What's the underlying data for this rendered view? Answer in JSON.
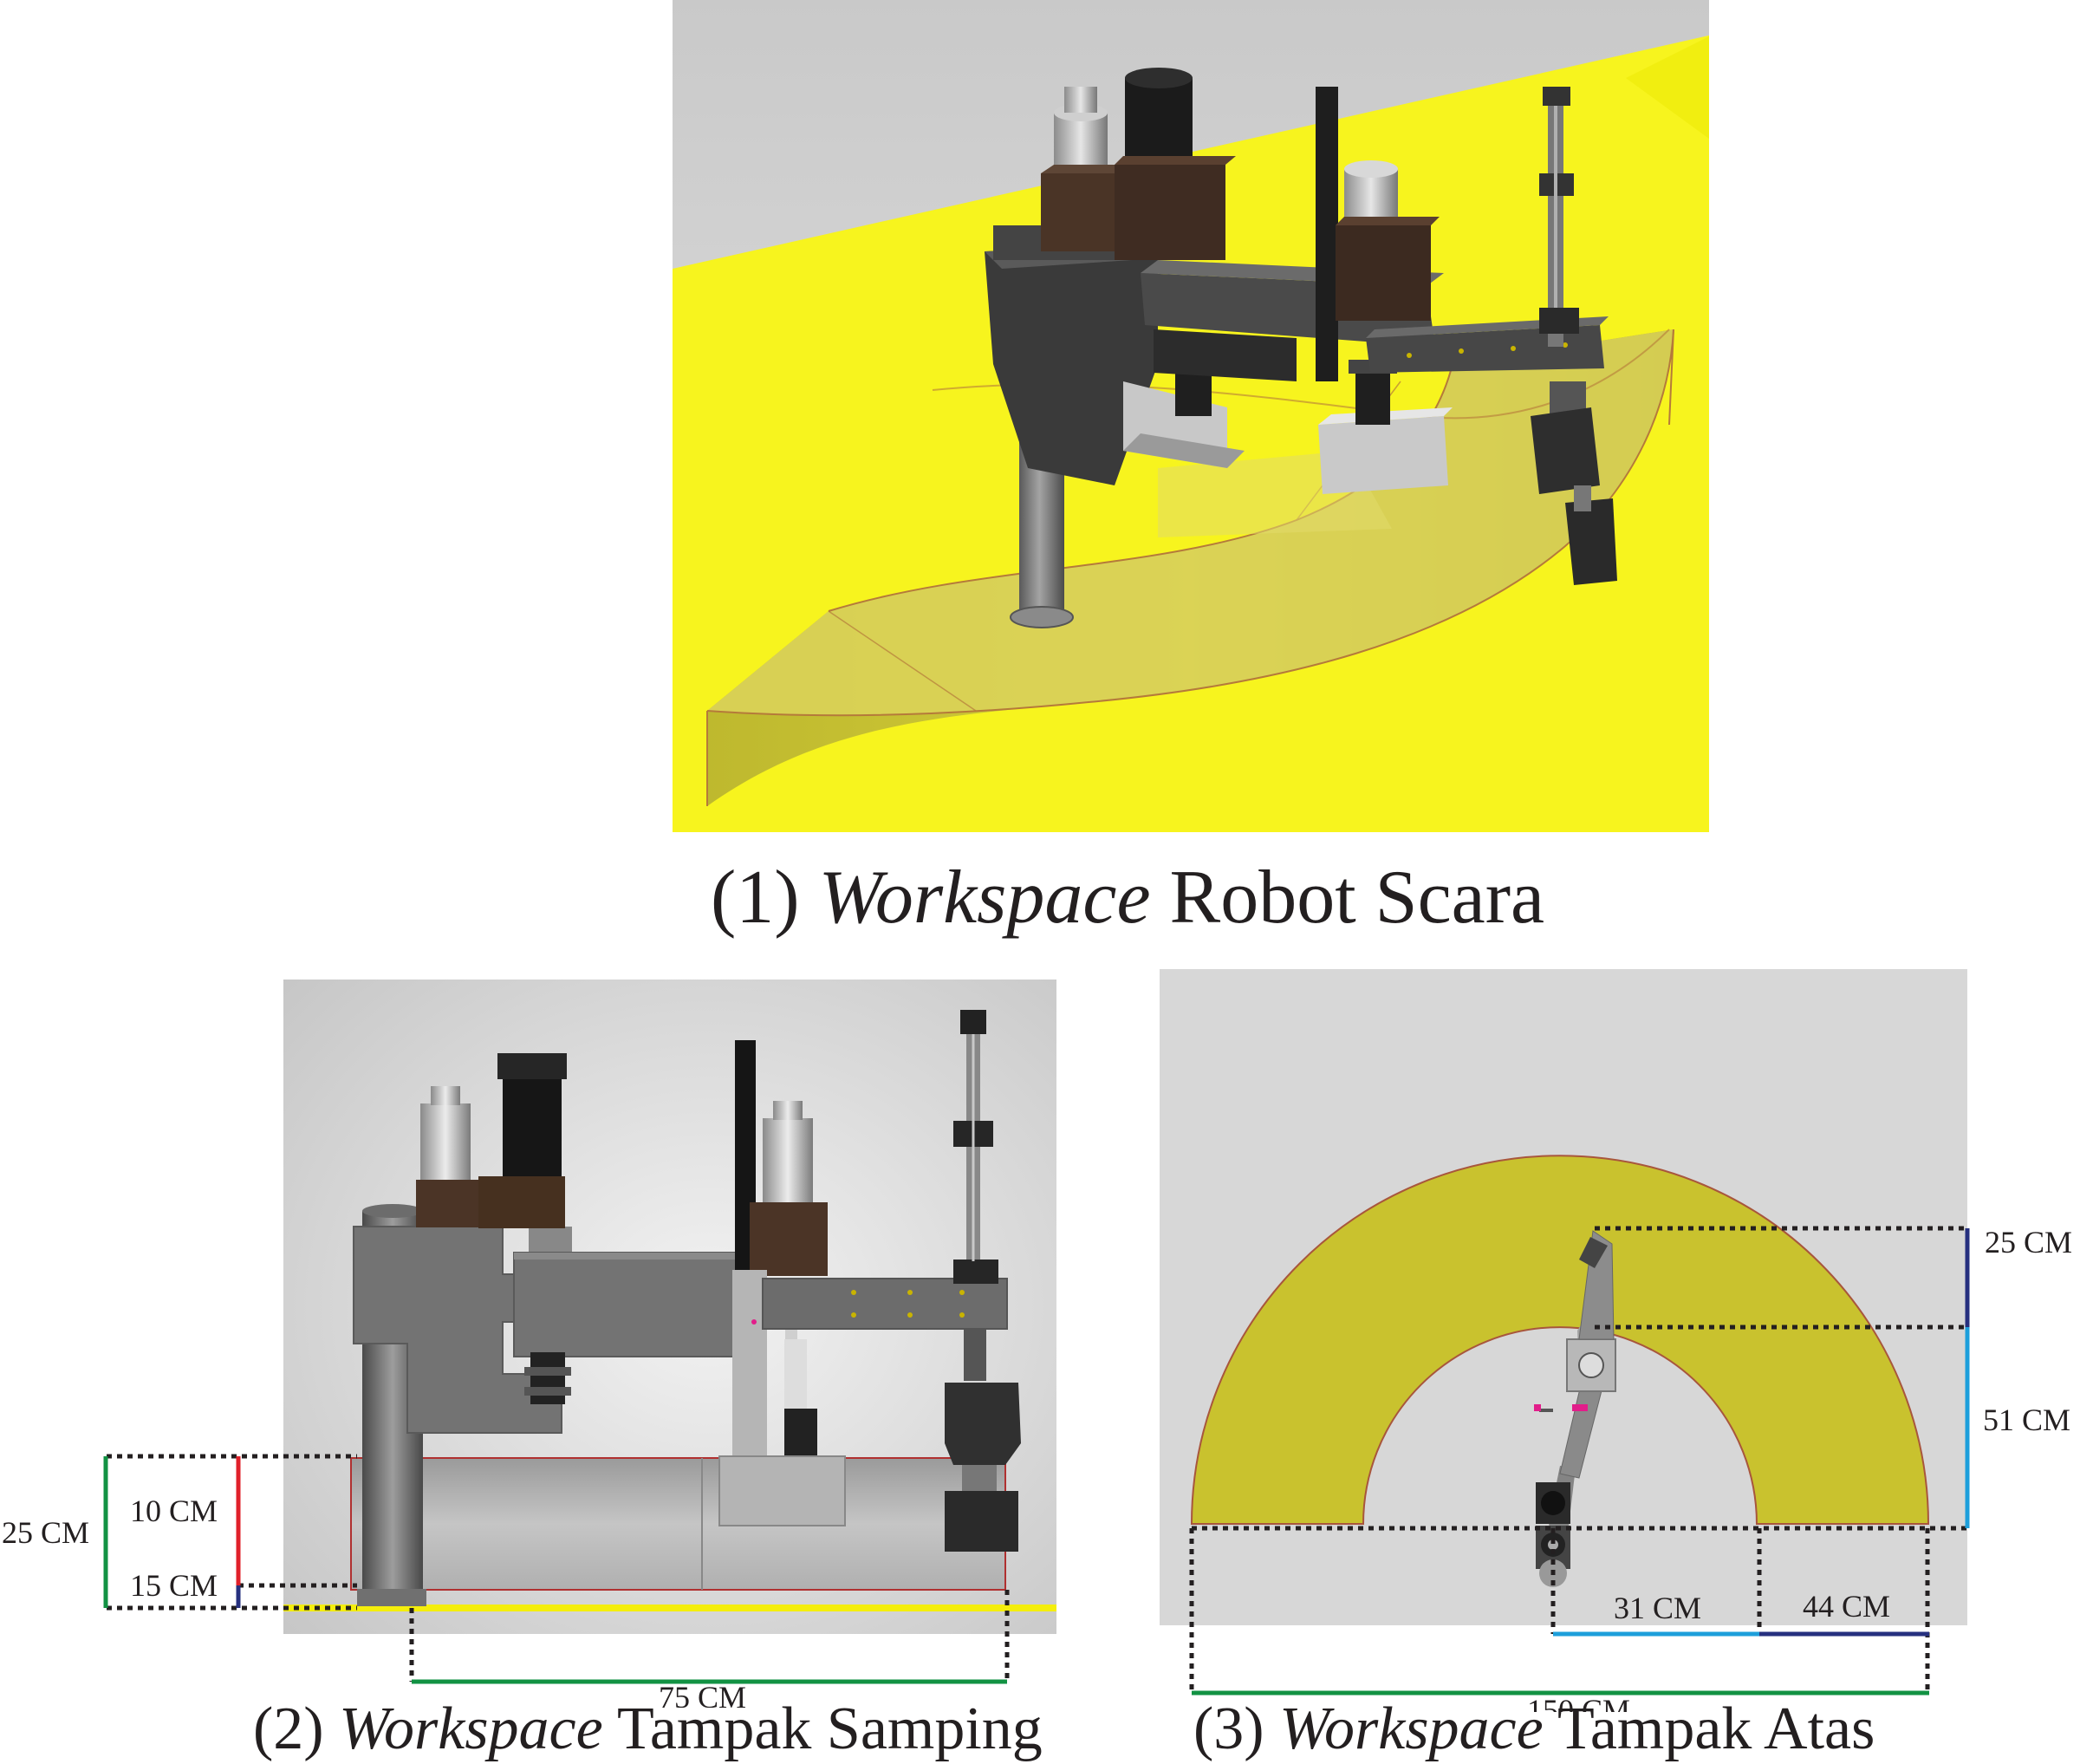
{
  "panels": {
    "iso": {
      "caption_num": "(1)",
      "caption_italic": "Workspace",
      "caption_rest": "Robot Scara"
    },
    "side": {
      "caption_num": "(2)",
      "caption_italic": "Workspace",
      "caption_rest": "Tampak Samping",
      "dims": {
        "total_height": "25 CM",
        "upper_height": "10 CM",
        "lower_height": "15 CM",
        "reach": "75 CM"
      }
    },
    "top": {
      "caption_num": "(3)",
      "caption_italic": "Workspace",
      "caption_rest": "Tampak Atas",
      "dims": {
        "ring_width": "25 CM",
        "inner_radius": "51 CM",
        "inner_half": "31 CM",
        "outer_band": "44 CM",
        "diameter": "150 CM"
      }
    }
  },
  "colors": {
    "floor_yellow": "#f7f41e",
    "workspace_olive": "#c9c22e",
    "background_gray": "#d7d7d7",
    "dim_green": "#129243",
    "dim_red": "#e0202a",
    "dim_navy": "#26307f",
    "dim_cyan": "#1d9fdb"
  }
}
